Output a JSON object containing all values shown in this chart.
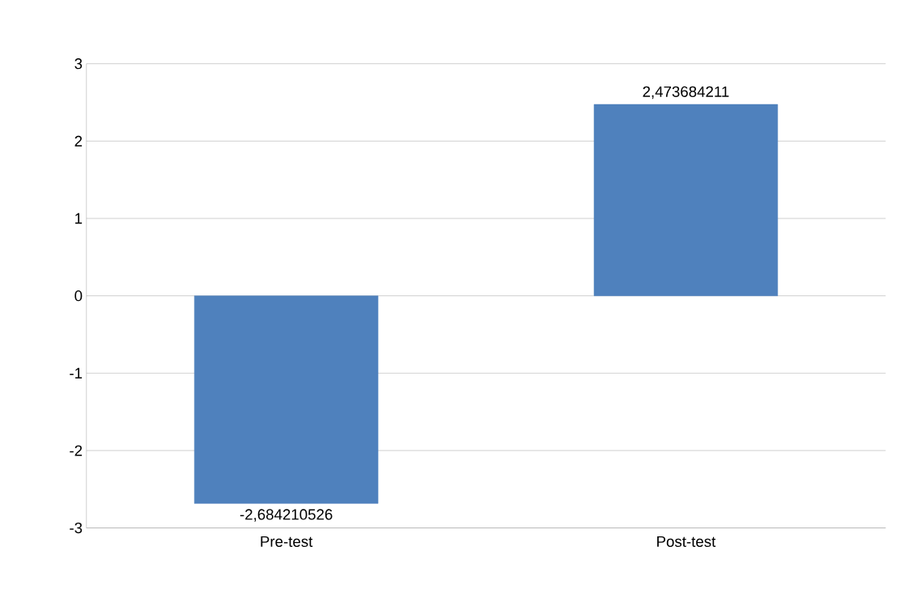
{
  "chart_data": {
    "type": "bar",
    "categories": [
      "Pre-test",
      "Post-test"
    ],
    "values": [
      -2.684210526,
      2.473684211
    ],
    "value_labels": [
      "-2,684210526",
      "2,473684211"
    ],
    "color": "#4f81bd",
    "ylim": [
      -3,
      3
    ],
    "yticks": [
      -3,
      -2,
      -1,
      0,
      1,
      2,
      3
    ],
    "grid": "y"
  }
}
